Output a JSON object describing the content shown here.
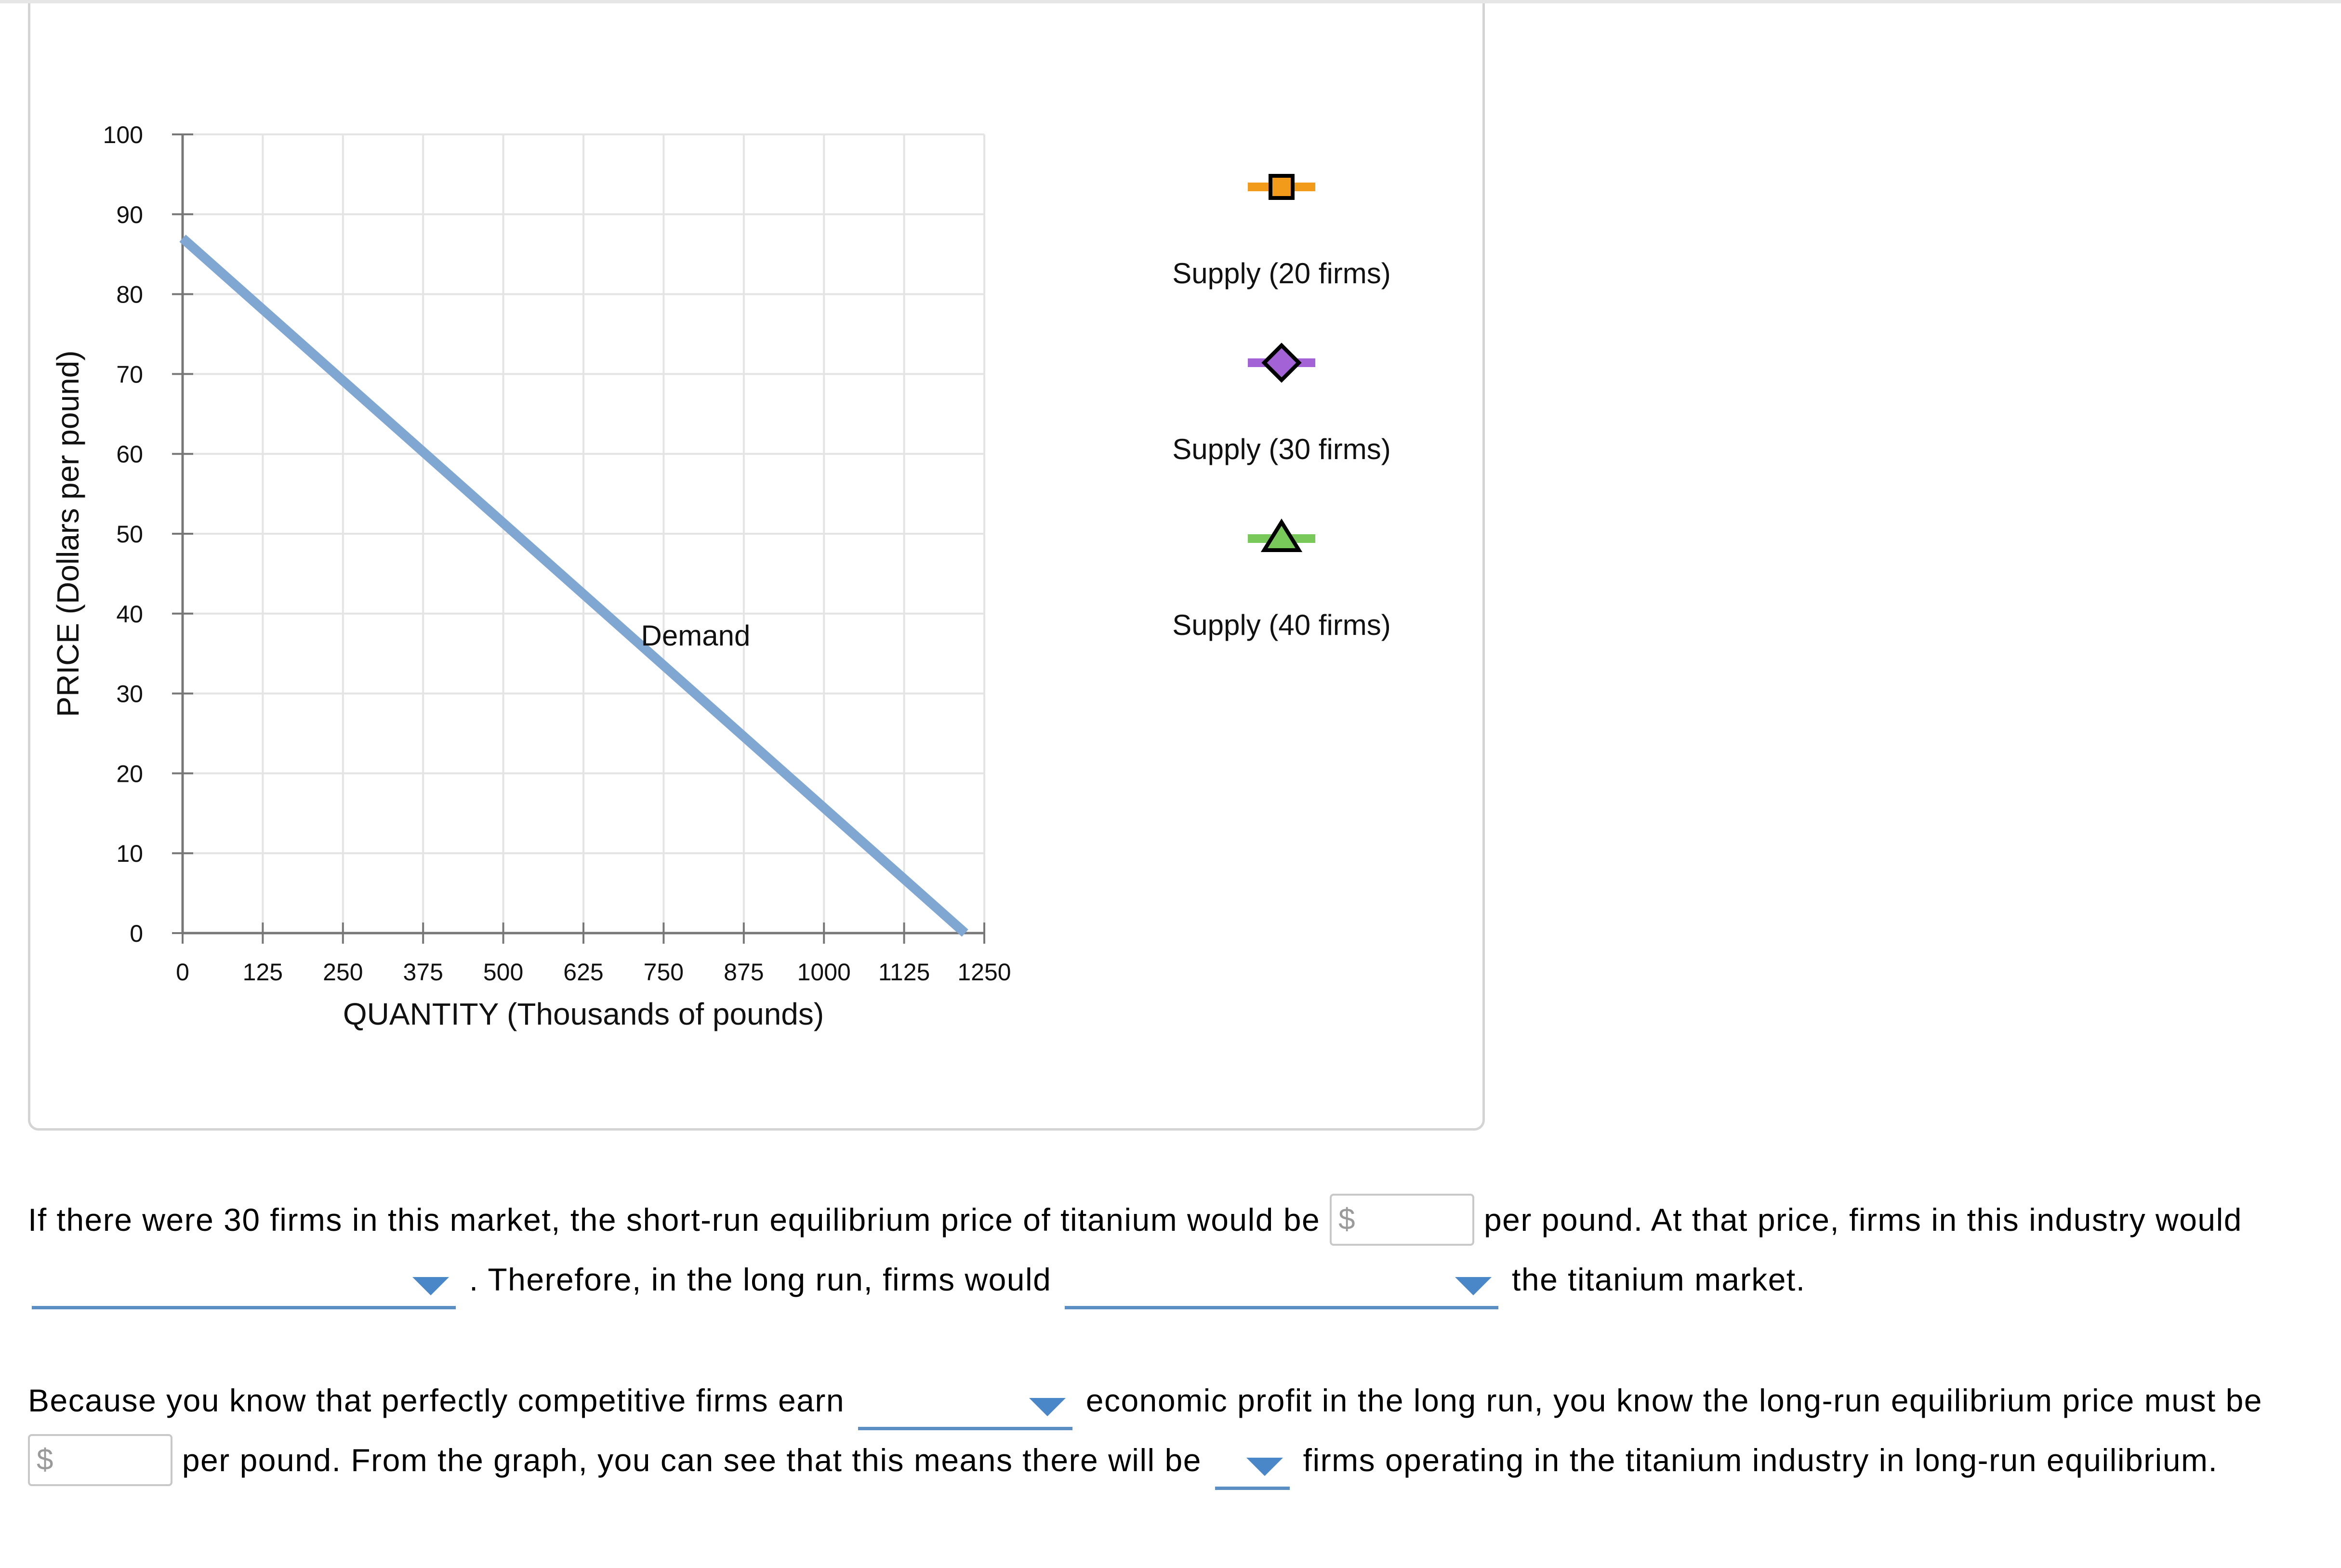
{
  "chart_data": {
    "type": "line",
    "xlabel": "QUANTITY (Thousands of pounds)",
    "ylabel": "PRICE (Dollars per pound)",
    "xlim": [
      0,
      1250
    ],
    "ylim": [
      0,
      100
    ],
    "x_ticks": [
      0,
      125,
      250,
      375,
      500,
      625,
      750,
      875,
      1000,
      1125,
      1250
    ],
    "y_ticks": [
      0,
      10,
      20,
      30,
      40,
      50,
      60,
      70,
      80,
      90,
      100
    ],
    "grid": true,
    "series": [
      {
        "name": "Demand",
        "color": "#7fa7d1",
        "points": [
          [
            0,
            87
          ],
          [
            1220,
            0
          ]
        ],
        "label_at": [
          800,
          36
        ]
      }
    ],
    "palette": [
      {
        "label": "Supply (20 firms)",
        "color": "#f29b1b",
        "marker": "square"
      },
      {
        "label": "Supply (30 firms)",
        "color": "#a362d6",
        "marker": "diamond"
      },
      {
        "label": "Supply (40 firms)",
        "color": "#79c95a",
        "marker": "triangle"
      }
    ]
  },
  "questions": {
    "p1_part1": "If there were 30 firms in this market, the short-run equilibrium price of titanium would be",
    "p1_part2": "per pound. At that price, firms in this industry would",
    "p1_part3": ". Therefore, in the long run, firms would",
    "p1_part4": "the titanium market.",
    "p2_part1": "Because you know that perfectly competitive firms earn",
    "p2_part2": "economic profit in the long run, you know the long-run equilibrium price must be",
    "p2_part3": "per pound. From the graph, you can see that this means there will be",
    "p2_part4": "firms operating in the titanium industry in long-run equilibrium.",
    "currency_symbol": "$"
  },
  "colors": {
    "dropdown_accent": "#4a87c8",
    "input_border": "#c8c8c8",
    "panel_border": "#d4d4d4"
  }
}
